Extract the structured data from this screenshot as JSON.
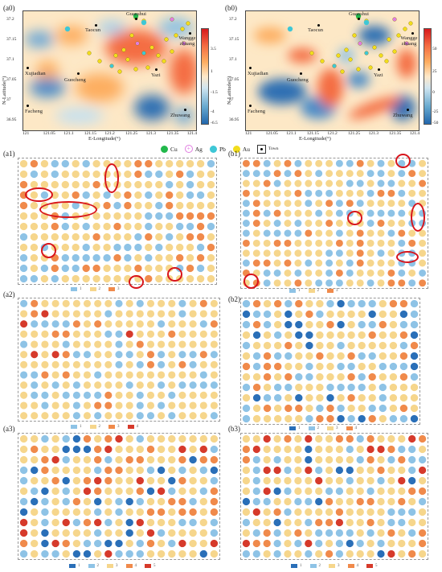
{
  "panels": {
    "a0": "(a0)",
    "b0": "(b0)",
    "a1": "(a1)",
    "b1": "(b1)",
    "a2": "(a2)",
    "b2": "(b2)",
    "a3": "(a3)",
    "b3": "(b3)"
  },
  "map": {
    "y_label": "N-Latitude(°)",
    "x_label": "E-Longitude(°)",
    "y_ticks": [
      "37.2",
      "37.15",
      "37.1",
      "37.05",
      "37",
      "36.95"
    ],
    "x_ticks": [
      "121",
      "121.05",
      "121.1",
      "121.15",
      "121.2",
      "121.25",
      "121.3",
      "121.35",
      "121.4"
    ],
    "towns": [
      {
        "name": "Guanshui"
      },
      {
        "name": "Taocun"
      },
      {
        "name": "Wangge zhuang"
      },
      {
        "name": "Xujiadian"
      },
      {
        "name": "Guocheng"
      },
      {
        "name": "Yazi"
      },
      {
        "name": "Facheng"
      },
      {
        "name": "Zhuwang"
      }
    ],
    "colorbar_a": [
      "3.5",
      "1",
      "-1.5",
      "-4",
      "-6.5"
    ],
    "colorbar_b": [
      "50",
      "25",
      "0",
      "-25",
      "-50"
    ]
  },
  "legend": {
    "items": [
      {
        "label": "Cu",
        "color": "#22b84b"
      },
      {
        "label": "Ag",
        "color": "#e07de0"
      },
      {
        "label": "Pb",
        "color": "#3ec7d6"
      },
      {
        "label": "Au",
        "color": "#f2dd1c"
      }
    ],
    "town": "Town"
  },
  "class_colors": {
    "1": "#2a6fb8",
    "2": "#8ec3e6",
    "3": "#f6d68c",
    "4": "#f28c50",
    "5": "#d63a2b",
    "pale_blue": "#8ec3e6",
    "pale_yellow": "#f6d68c",
    "orange": "#f08a4b"
  },
  "grid_legends": {
    "a1": [
      "1",
      "2",
      "3"
    ],
    "b1": [
      "1",
      "2",
      "3"
    ],
    "a2": [
      "1",
      "2",
      "3",
      "4"
    ],
    "b2": [
      "1",
      "2",
      "3",
      "4"
    ],
    "a3": [
      "1",
      "2",
      "3",
      "4",
      "5"
    ],
    "b3": [
      "1",
      "2",
      "3",
      "4",
      "5"
    ]
  }
}
